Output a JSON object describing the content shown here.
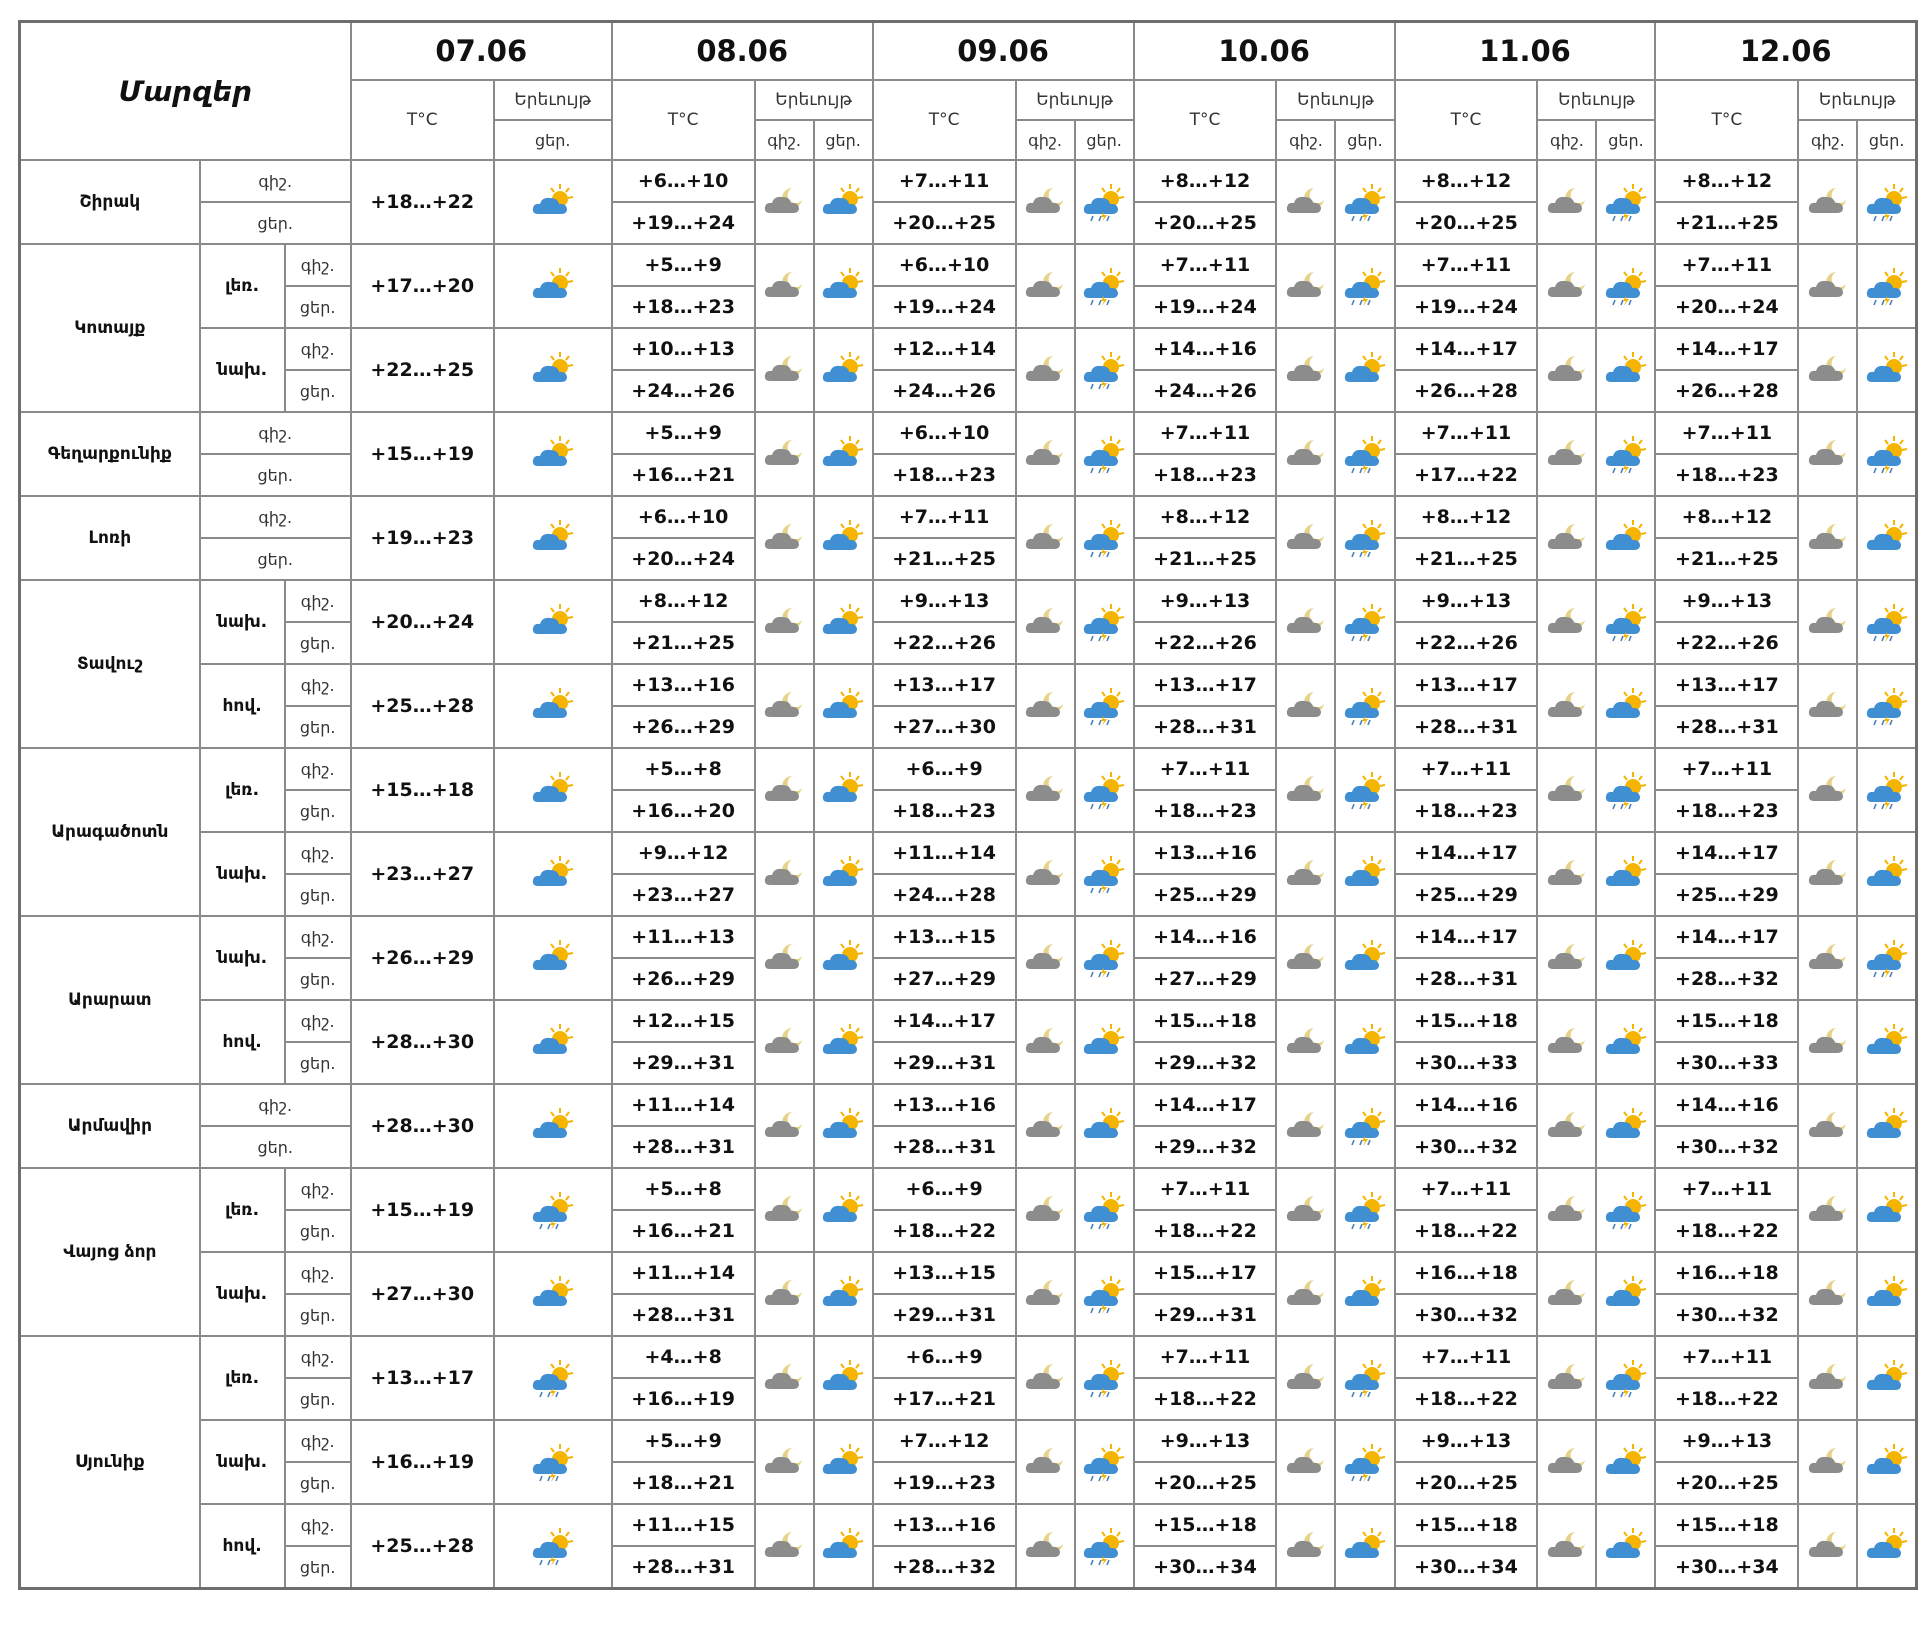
{
  "header": {
    "title": "Մարզեր",
    "temp_label": "T°C",
    "phen_label": "Երեւույթ",
    "night_label": "գիշ.",
    "day_label": "ցեր."
  },
  "dates": [
    "07.06",
    "08.06",
    "09.06",
    "10.06",
    "11.06",
    "12.06"
  ],
  "icon_legend": {
    "sun-cloud-icon": "sun behind blue cloud",
    "sun-cloud-rain-icon": "sun behind blue cloud with rain and lightning",
    "grey-cloud-moon-icon": "grey cloud with moon",
    "grey-cloud-moon-rain-icon": "grey cloud with moon and rain"
  },
  "colors": {
    "cloud_blue": "#3f8fd2",
    "cloud_grey": "#8c8c8c",
    "sun": "#f5b400",
    "border": "#8a8a8a"
  },
  "regions": [
    {
      "name": "Շիրակ",
      "areas": [
        {
          "name": "",
          "rows": [
            {
              "n": [
                "",
                "+6…+10",
                "+7…+11",
                "+8…+12",
                "+8…+12",
                "+8…+12"
              ],
              "d": [
                "+18…+22",
                "+19…+24",
                "+20…+25",
                "+20…+25",
                "+20…+25",
                "+21…+25"
              ],
              "wd": [
                "sun-cloud-icon",
                "sun-cloud-icon",
                "sun-cloud-rain-icon",
                "sun-cloud-rain-icon",
                "sun-cloud-rain-icon",
                "sun-cloud-rain-icon"
              ],
              "wn": [
                "",
                "grey-cloud-moon-icon",
                "grey-cloud-moon-icon",
                "grey-cloud-moon-icon",
                "grey-cloud-moon-icon",
                "grey-cloud-moon-icon"
              ]
            }
          ]
        }
      ]
    },
    {
      "name": "Կոտայք",
      "areas": [
        {
          "name": "լեռ.",
          "rows": [
            {
              "n": [
                "",
                "+5…+9",
                "+6…+10",
                "+7…+11",
                "+7…+11",
                "+7…+11"
              ],
              "d": [
                "+17…+20",
                "+18…+23",
                "+19…+24",
                "+19…+24",
                "+19…+24",
                "+20…+24"
              ],
              "wd": [
                "sun-cloud-icon",
                "sun-cloud-icon",
                "sun-cloud-rain-icon",
                "sun-cloud-rain-icon",
                "sun-cloud-rain-icon",
                "sun-cloud-rain-icon"
              ],
              "wn": [
                "",
                "grey-cloud-moon-icon",
                "grey-cloud-moon-icon",
                "grey-cloud-moon-icon",
                "grey-cloud-moon-icon",
                "grey-cloud-moon-icon"
              ]
            }
          ]
        },
        {
          "name": "նախ.",
          "rows": [
            {
              "n": [
                "",
                "+10…+13",
                "+12…+14",
                "+14…+16",
                "+14…+17",
                "+14…+17"
              ],
              "d": [
                "+22…+25",
                "+24…+26",
                "+24…+26",
                "+24…+26",
                "+26…+28",
                "+26…+28"
              ],
              "wd": [
                "sun-cloud-icon",
                "sun-cloud-icon",
                "sun-cloud-rain-icon",
                "sun-cloud-icon",
                "sun-cloud-icon",
                "sun-cloud-icon"
              ],
              "wn": [
                "",
                "grey-cloud-moon-icon",
                "grey-cloud-moon-icon",
                "grey-cloud-moon-icon",
                "grey-cloud-moon-icon",
                "grey-cloud-moon-icon"
              ]
            }
          ]
        }
      ]
    },
    {
      "name": "Գեղարքունիք",
      "areas": [
        {
          "name": "",
          "rows": [
            {
              "n": [
                "",
                "+5…+9",
                "+6…+10",
                "+7…+11",
                "+7…+11",
                "+7…+11"
              ],
              "d": [
                "+15…+19",
                "+16…+21",
                "+18…+23",
                "+18…+23",
                "+17…+22",
                "+18…+23"
              ],
              "wd": [
                "sun-cloud-icon",
                "sun-cloud-icon",
                "sun-cloud-rain-icon",
                "sun-cloud-rain-icon",
                "sun-cloud-rain-icon",
                "sun-cloud-rain-icon"
              ],
              "wn": [
                "",
                "grey-cloud-moon-icon",
                "grey-cloud-moon-icon",
                "grey-cloud-moon-icon",
                "grey-cloud-moon-icon",
                "grey-cloud-moon-icon"
              ]
            }
          ]
        }
      ]
    },
    {
      "name": "Լոռի",
      "areas": [
        {
          "name": "",
          "rows": [
            {
              "n": [
                "",
                "+6…+10",
                "+7…+11",
                "+8…+12",
                "+8…+12",
                "+8…+12"
              ],
              "d": [
                "+19…+23",
                "+20…+24",
                "+21…+25",
                "+21…+25",
                "+21…+25",
                "+21…+25"
              ],
              "wd": [
                "sun-cloud-icon",
                "sun-cloud-icon",
                "sun-cloud-rain-icon",
                "sun-cloud-rain-icon",
                "sun-cloud-icon",
                "sun-cloud-icon"
              ],
              "wn": [
                "",
                "grey-cloud-moon-icon",
                "grey-cloud-moon-icon",
                "grey-cloud-moon-icon",
                "grey-cloud-moon-icon",
                "grey-cloud-moon-icon"
              ]
            }
          ]
        }
      ]
    },
    {
      "name": "Տավուշ",
      "areas": [
        {
          "name": "նախ.",
          "rows": [
            {
              "n": [
                "",
                "+8…+12",
                "+9…+13",
                "+9…+13",
                "+9…+13",
                "+9…+13"
              ],
              "d": [
                "+20…+24",
                "+21…+25",
                "+22…+26",
                "+22…+26",
                "+22…+26",
                "+22…+26"
              ],
              "wd": [
                "sun-cloud-icon",
                "sun-cloud-icon",
                "sun-cloud-rain-icon",
                "sun-cloud-rain-icon",
                "sun-cloud-rain-icon",
                "sun-cloud-rain-icon"
              ],
              "wn": [
                "",
                "grey-cloud-moon-icon",
                "grey-cloud-moon-icon",
                "grey-cloud-moon-icon",
                "grey-cloud-moon-icon",
                "grey-cloud-moon-icon"
              ]
            }
          ]
        },
        {
          "name": "հով.",
          "rows": [
            {
              "n": [
                "",
                "+13…+16",
                "+13…+17",
                "+13…+17",
                "+13…+17",
                "+13…+17"
              ],
              "d": [
                "+25…+28",
                "+26…+29",
                "+27…+30",
                "+28…+31",
                "+28…+31",
                "+28…+31"
              ],
              "wd": [
                "sun-cloud-icon",
                "sun-cloud-icon",
                "sun-cloud-rain-icon",
                "sun-cloud-rain-icon",
                "sun-cloud-icon",
                "sun-cloud-rain-icon"
              ],
              "wn": [
                "",
                "grey-cloud-moon-icon",
                "grey-cloud-moon-icon",
                "grey-cloud-moon-icon",
                "grey-cloud-moon-icon",
                "grey-cloud-moon-icon"
              ]
            }
          ]
        }
      ]
    },
    {
      "name": "Արագածոտն",
      "areas": [
        {
          "name": "լեռ.",
          "rows": [
            {
              "n": [
                "",
                "+5…+8",
                "+6…+9",
                "+7…+11",
                "+7…+11",
                "+7…+11"
              ],
              "d": [
                "+15…+18",
                "+16…+20",
                "+18…+23",
                "+18…+23",
                "+18…+23",
                "+18…+23"
              ],
              "wd": [
                "sun-cloud-icon",
                "sun-cloud-icon",
                "sun-cloud-rain-icon",
                "sun-cloud-rain-icon",
                "sun-cloud-rain-icon",
                "sun-cloud-rain-icon"
              ],
              "wn": [
                "",
                "grey-cloud-moon-icon",
                "grey-cloud-moon-icon",
                "grey-cloud-moon-icon",
                "grey-cloud-moon-icon",
                "grey-cloud-moon-icon"
              ]
            }
          ]
        },
        {
          "name": "նախ.",
          "rows": [
            {
              "n": [
                "",
                "+9…+12",
                "+11…+14",
                "+13…+16",
                "+14…+17",
                "+14…+17"
              ],
              "d": [
                "+23…+27",
                "+23…+27",
                "+24…+28",
                "+25…+29",
                "+25…+29",
                "+25…+29"
              ],
              "wd": [
                "sun-cloud-icon",
                "sun-cloud-icon",
                "sun-cloud-rain-icon",
                "sun-cloud-icon",
                "sun-cloud-icon",
                "sun-cloud-icon"
              ],
              "wn": [
                "",
                "grey-cloud-moon-icon",
                "grey-cloud-moon-icon",
                "grey-cloud-moon-icon",
                "grey-cloud-moon-icon",
                "grey-cloud-moon-icon"
              ]
            }
          ]
        }
      ]
    },
    {
      "name": "Արարատ",
      "areas": [
        {
          "name": "նախ.",
          "rows": [
            {
              "n": [
                "",
                "+11…+13",
                "+13…+15",
                "+14…+16",
                "+14…+17",
                "+14…+17"
              ],
              "d": [
                "+26…+29",
                "+26…+29",
                "+27…+29",
                "+27…+29",
                "+28…+31",
                "+28…+32"
              ],
              "wd": [
                "sun-cloud-icon",
                "sun-cloud-icon",
                "sun-cloud-rain-icon",
                "sun-cloud-icon",
                "sun-cloud-icon",
                "sun-cloud-rain-icon"
              ],
              "wn": [
                "",
                "grey-cloud-moon-icon",
                "grey-cloud-moon-icon",
                "grey-cloud-moon-icon",
                "grey-cloud-moon-icon",
                "grey-cloud-moon-icon"
              ]
            }
          ]
        },
        {
          "name": "հով.",
          "rows": [
            {
              "n": [
                "",
                "+12…+15",
                "+14…+17",
                "+15…+18",
                "+15…+18",
                "+15…+18"
              ],
              "d": [
                "+28…+30",
                "+29…+31",
                "+29…+31",
                "+29…+32",
                "+30…+33",
                "+30…+33"
              ],
              "wd": [
                "sun-cloud-icon",
                "sun-cloud-icon",
                "sun-cloud-icon",
                "sun-cloud-icon",
                "sun-cloud-icon",
                "sun-cloud-icon"
              ],
              "wn": [
                "",
                "grey-cloud-moon-icon",
                "grey-cloud-moon-icon",
                "grey-cloud-moon-icon",
                "grey-cloud-moon-icon",
                "grey-cloud-moon-icon"
              ]
            }
          ]
        }
      ]
    },
    {
      "name": "Արմավիր",
      "areas": [
        {
          "name": "",
          "rows": [
            {
              "n": [
                "",
                "+11…+14",
                "+13…+16",
                "+14…+17",
                "+14…+16",
                "+14…+16"
              ],
              "d": [
                "+28…+30",
                "+28…+31",
                "+28…+31",
                "+29…+32",
                "+30…+32",
                "+30…+32"
              ],
              "wd": [
                "sun-cloud-icon",
                "sun-cloud-icon",
                "sun-cloud-icon",
                "sun-cloud-rain-icon",
                "sun-cloud-icon",
                "sun-cloud-icon"
              ],
              "wn": [
                "",
                "grey-cloud-moon-icon",
                "grey-cloud-moon-icon",
                "grey-cloud-moon-icon",
                "grey-cloud-moon-icon",
                "grey-cloud-moon-icon"
              ]
            }
          ]
        }
      ]
    },
    {
      "name": "Վայոց ձոր",
      "areas": [
        {
          "name": "լեռ.",
          "rows": [
            {
              "n": [
                "",
                "+5…+8",
                "+6…+9",
                "+7…+11",
                "+7…+11",
                "+7…+11"
              ],
              "d": [
                "+15…+19",
                "+16…+21",
                "+18…+22",
                "+18…+22",
                "+18…+22",
                "+18…+22"
              ],
              "wd": [
                "sun-cloud-rain-icon",
                "sun-cloud-icon",
                "sun-cloud-rain-icon",
                "sun-cloud-rain-icon",
                "sun-cloud-rain-icon",
                "sun-cloud-icon"
              ],
              "wn": [
                "",
                "grey-cloud-moon-icon",
                "grey-cloud-moon-icon",
                "grey-cloud-moon-icon",
                "grey-cloud-moon-icon",
                "grey-cloud-moon-icon"
              ]
            }
          ]
        },
        {
          "name": "նախ.",
          "rows": [
            {
              "n": [
                "",
                "+11…+14",
                "+13…+15",
                "+15…+17",
                "+16…+18",
                "+16…+18"
              ],
              "d": [
                "+27…+30",
                "+28…+31",
                "+29…+31",
                "+29…+31",
                "+30…+32",
                "+30…+32"
              ],
              "wd": [
                "sun-cloud-icon",
                "sun-cloud-icon",
                "sun-cloud-rain-icon",
                "sun-cloud-icon",
                "sun-cloud-icon",
                "sun-cloud-icon"
              ],
              "wn": [
                "",
                "grey-cloud-moon-icon",
                "grey-cloud-moon-icon",
                "grey-cloud-moon-icon",
                "grey-cloud-moon-icon",
                "grey-cloud-moon-icon"
              ]
            }
          ]
        }
      ]
    },
    {
      "name": "Սյունիք",
      "areas": [
        {
          "name": "լեռ.",
          "rows": [
            {
              "n": [
                "",
                "+4…+8",
                "+6…+9",
                "+7…+11",
                "+7…+11",
                "+7…+11"
              ],
              "d": [
                "+13…+17",
                "+16…+19",
                "+17…+21",
                "+18…+22",
                "+18…+22",
                "+18…+22"
              ],
              "wd": [
                "sun-cloud-rain-icon",
                "sun-cloud-icon",
                "sun-cloud-rain-icon",
                "sun-cloud-rain-icon",
                "sun-cloud-rain-icon",
                "sun-cloud-icon"
              ],
              "wn": [
                "",
                "grey-cloud-moon-icon",
                "grey-cloud-moon-icon",
                "grey-cloud-moon-icon",
                "grey-cloud-moon-icon",
                "grey-cloud-moon-icon"
              ]
            }
          ]
        },
        {
          "name": "նախ.",
          "rows": [
            {
              "n": [
                "",
                "+5…+9",
                "+7…+12",
                "+9…+13",
                "+9…+13",
                "+9…+13"
              ],
              "d": [
                "+16…+19",
                "+18…+21",
                "+19…+23",
                "+20…+25",
                "+20…+25",
                "+20…+25"
              ],
              "wd": [
                "sun-cloud-rain-icon",
                "sun-cloud-icon",
                "sun-cloud-rain-icon",
                "sun-cloud-rain-icon",
                "sun-cloud-icon",
                "sun-cloud-icon"
              ],
              "wn": [
                "",
                "grey-cloud-moon-icon",
                "grey-cloud-moon-icon",
                "grey-cloud-moon-icon",
                "grey-cloud-moon-icon",
                "grey-cloud-moon-icon"
              ]
            }
          ]
        },
        {
          "name": "հով.",
          "rows": [
            {
              "n": [
                "",
                "+11…+15",
                "+13…+16",
                "+15…+18",
                "+15…+18",
                "+15…+18"
              ],
              "d": [
                "+25…+28",
                "+28…+31",
                "+28…+32",
                "+30…+34",
                "+30…+34",
                "+30…+34"
              ],
              "wd": [
                "sun-cloud-rain-icon",
                "sun-cloud-icon",
                "sun-cloud-rain-icon",
                "sun-cloud-icon",
                "sun-cloud-icon",
                "sun-cloud-icon"
              ],
              "wn": [
                "",
                "grey-cloud-moon-icon",
                "grey-cloud-moon-icon",
                "grey-cloud-moon-icon",
                "grey-cloud-moon-icon",
                "grey-cloud-moon-icon"
              ]
            }
          ]
        }
      ]
    }
  ]
}
